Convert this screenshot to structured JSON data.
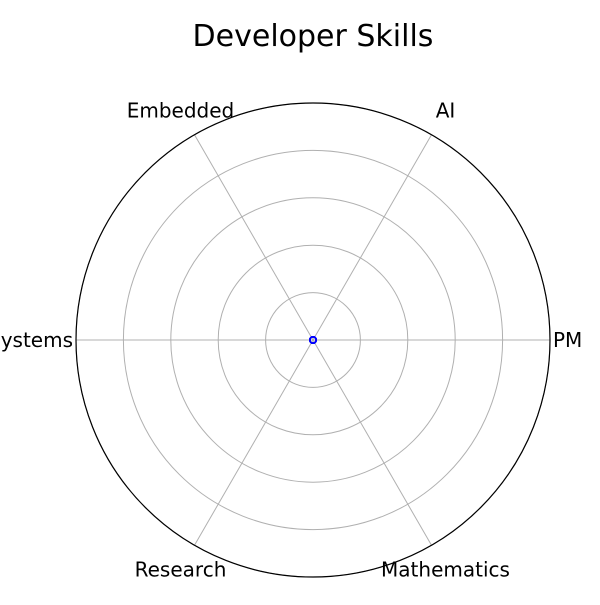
{
  "chart_data": {
    "type": "radar",
    "title": "Developer Skills",
    "categories": [
      "PM",
      "AI",
      "Embedded",
      "Systems",
      "Research",
      "Mathematics"
    ],
    "series": [
      {
        "values": [
          0,
          0,
          0,
          0,
          0,
          0
        ]
      }
    ],
    "rlim": [
      0,
      5
    ],
    "rgrid_levels": 5,
    "grid": true,
    "colors": {
      "series": "#0000ff",
      "grid": "#b0b0b0",
      "frame": "#000000",
      "text": "#000000"
    }
  }
}
